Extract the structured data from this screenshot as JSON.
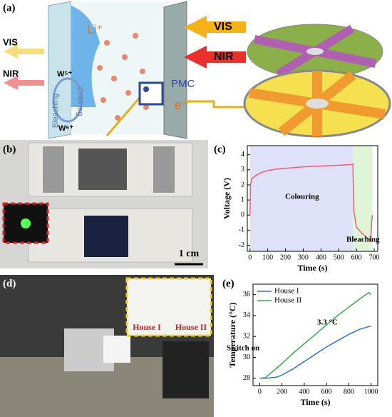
{
  "panel_labels": [
    "(a)",
    "(b)",
    "(c)",
    "(d)",
    "(e)"
  ],
  "schematic": {
    "ion": "Li⁺",
    "light_in": [
      "VIS",
      "NIR"
    ],
    "light_out": [
      "VIS",
      "NIR"
    ],
    "w5": "W⁵⁺",
    "w6": "W⁶⁺",
    "bleach": "Bleaching",
    "color": "Coloring",
    "pmc": "PMC",
    "electron": "e⁻"
  },
  "photo_b": {
    "scale": "1 cm"
  },
  "photo_d": {
    "houses": [
      "House I",
      "House II"
    ]
  },
  "chart_data": [
    {
      "type": "line",
      "xlabel": "Time (s)",
      "ylabel": "Voltage (V)",
      "xlim": [
        -15,
        720
      ],
      "ylim": [
        -2.4,
        4.6
      ],
      "xticks": [
        0,
        100,
        200,
        300,
        400,
        500,
        600,
        700
      ],
      "yticks": [
        -2,
        -1,
        0,
        1,
        2,
        3,
        4
      ],
      "regions": [
        {
          "x": [
            0,
            580
          ],
          "color": "#dfe1f8"
        },
        {
          "x": [
            580,
            690
          ],
          "color": "#dff5d8"
        }
      ],
      "annotations": [
        "Colouring",
        "Bleaching"
      ],
      "series": [
        {
          "color": "#e8607a",
          "x": [
            0,
            3,
            10,
            30,
            60,
            100,
            150,
            200,
            300,
            400,
            500,
            575,
            580,
            585,
            600,
            630,
            660,
            680,
            685,
            690
          ],
          "values": [
            0,
            2.0,
            2.4,
            2.6,
            2.8,
            2.95,
            3.05,
            3.1,
            3.2,
            3.25,
            3.3,
            3.35,
            3.4,
            0.3,
            -0.8,
            -1.2,
            -1.5,
            -1.7,
            -0.5,
            0
          ]
        }
      ]
    },
    {
      "type": "line",
      "xlabel": "Time (s)",
      "ylabel": "Temperature (°C)",
      "xlim": [
        -60,
        1060
      ],
      "ylim": [
        27.3,
        37
      ],
      "xticks": [
        0,
        200,
        400,
        600,
        800,
        1000
      ],
      "yticks": [
        28,
        30,
        32,
        34,
        36
      ],
      "annotations": [
        "Switch on",
        "3.3 °C"
      ],
      "legend": "upper left",
      "series": [
        {
          "name": "House I",
          "color": "#2f6fd6",
          "x": [
            0,
            50,
            100,
            150,
            200,
            300,
            400,
            500,
            600,
            700,
            800,
            900,
            1000
          ],
          "values": [
            28,
            28,
            28.05,
            28.1,
            28.3,
            28.9,
            29.6,
            30.3,
            31.0,
            31.6,
            32.2,
            32.7,
            33.0
          ]
        },
        {
          "name": "House II",
          "color": "#3aa84a",
          "x": [
            0,
            50,
            100,
            200,
            300,
            400,
            500,
            600,
            700,
            800,
            900,
            980,
            1000
          ],
          "values": [
            28,
            28.05,
            28.5,
            29.4,
            30.4,
            31.3,
            32.2,
            33.1,
            34.0,
            34.8,
            35.6,
            36.2,
            36.0
          ]
        }
      ]
    }
  ]
}
